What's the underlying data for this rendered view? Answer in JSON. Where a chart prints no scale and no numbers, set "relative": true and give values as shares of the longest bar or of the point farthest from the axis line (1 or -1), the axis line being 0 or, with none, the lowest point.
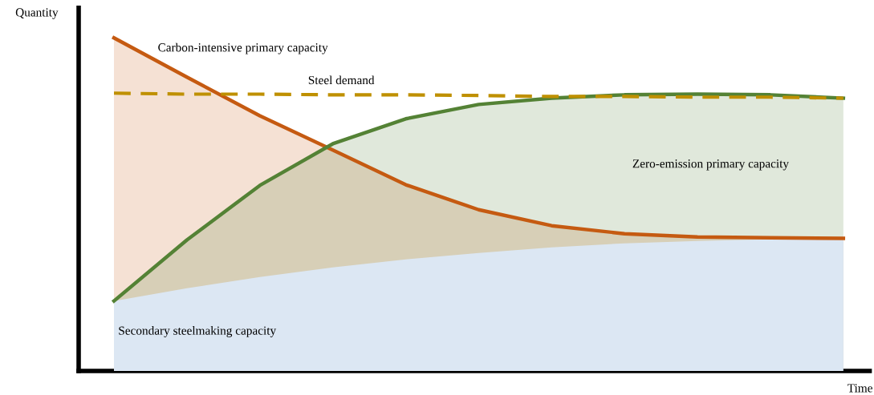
{
  "chart_data": {
    "type": "line",
    "relative": true,
    "xlabel": "Time",
    "ylabel": "Quantity",
    "categories": [
      null,
      null,
      null,
      null,
      null,
      null,
      null,
      null,
      null,
      null,
      null
    ],
    "series": [
      {
        "name": "Secondary steelmaking capacity",
        "type": "area",
        "color": "#dce7f3",
        "values": [
          0.21,
          0.248,
          0.282,
          0.311,
          0.335,
          0.354,
          0.371,
          0.383,
          0.39,
          0.395,
          0.398
        ]
      },
      {
        "name": "Carbon-intensive primary capacity",
        "type": "area",
        "color": "#c55a11",
        "values": [
          1,
          0.882,
          0.766,
          0.663,
          0.559,
          0.484,
          0.436,
          0.412,
          0.402,
          0.4,
          0.398
        ]
      },
      {
        "name": "Zero-emission primary capacity",
        "type": "area",
        "color": "#548235",
        "values": [
          0.21,
          0.393,
          0.557,
          0.682,
          0.757,
          0.8,
          0.819,
          0.829,
          0.831,
          0.829,
          0.819
        ]
      },
      {
        "name": "Steel demand",
        "color": "#bf9000",
        "line_style": "dashed",
        "values": [
          0.834,
          0.831,
          0.831,
          0.829,
          0.829,
          0.827,
          0.824,
          0.824,
          0.822,
          0.822,
          0.819
        ]
      }
    ],
    "legend": false
  }
}
